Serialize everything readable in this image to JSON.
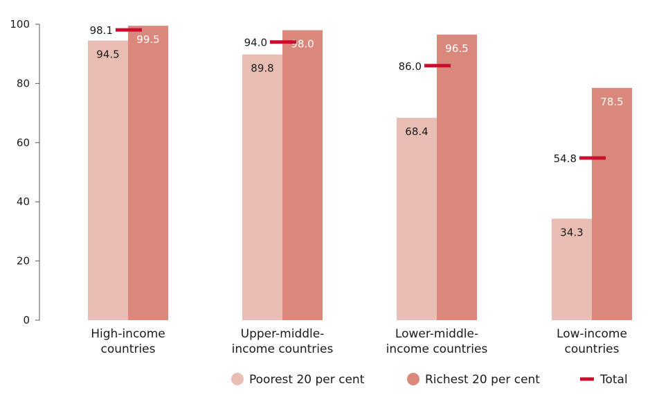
{
  "chart_data": {
    "type": "bar",
    "categories": [
      "High-income countries",
      "Upper-middle-income countries",
      "Lower-middle-income countries",
      "Low-income countries"
    ],
    "category_lines": [
      [
        "High-income",
        "countries"
      ],
      [
        "Upper-middle-",
        "income countries"
      ],
      [
        "Lower-middle-",
        "income countries"
      ],
      [
        "Low-income",
        "countries"
      ]
    ],
    "series": [
      {
        "name": "Poorest 20 per cent",
        "values": [
          94.5,
          89.8,
          68.4,
          34.3
        ],
        "color": "#e9bdb3"
      },
      {
        "name": "Richest 20 per cent",
        "values": [
          99.5,
          98.0,
          96.5,
          78.5
        ],
        "color": "#db887c"
      }
    ],
    "total": {
      "name": "Total",
      "values": [
        98.1,
        94.0,
        86.0,
        54.8
      ],
      "color": "#c8102e"
    },
    "ylim": [
      0,
      100
    ],
    "yticks": [
      0,
      20,
      40,
      60,
      80,
      100
    ],
    "grid": false,
    "legend": "bottom-right",
    "xlabel": "",
    "ylabel": "",
    "title": ""
  }
}
